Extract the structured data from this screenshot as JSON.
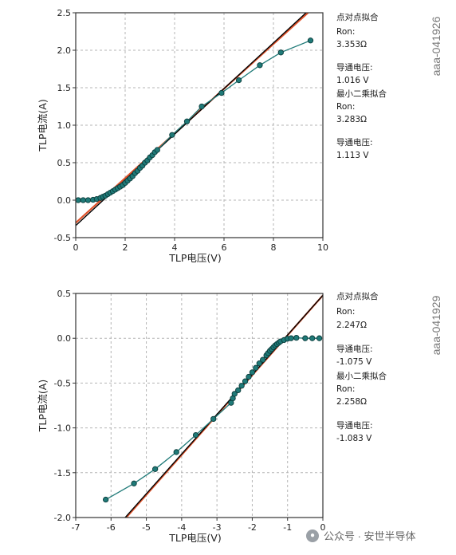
{
  "chart_data": [
    {
      "type": "scatter",
      "xlabel": "TLP电压(V)",
      "ylabel": "TLP电流(A)",
      "xlim": [
        0,
        10
      ],
      "ylim": [
        -0.5,
        2.5
      ],
      "xticks": [
        0,
        2,
        4,
        6,
        8,
        10
      ],
      "yticks": [
        -0.5,
        0.0,
        0.5,
        1.0,
        1.5,
        2.0,
        2.5
      ],
      "xtick_labels": [
        "0",
        "2",
        "4",
        "6",
        "8",
        "10"
      ],
      "ytick_labels": [
        "-0.5",
        "0.0",
        "0.5",
        "1.0",
        "1.5",
        "2.0",
        "2.5"
      ],
      "grid": true,
      "id_label": "aaa-041926",
      "series": [
        {
          "kind": "measured",
          "color": "#1f7a78",
          "x": [
            0.1,
            0.3,
            0.5,
            0.7,
            0.85,
            1.0,
            1.1,
            1.2,
            1.3,
            1.4,
            1.5,
            1.6,
            1.7,
            1.8,
            1.9,
            2.0,
            2.1,
            2.2,
            2.3,
            2.4,
            2.5,
            2.6,
            2.7,
            2.8,
            2.9,
            3.0,
            3.1,
            3.2,
            3.3,
            3.9,
            4.5,
            5.1,
            5.9,
            6.6,
            7.45,
            8.3,
            9.5
          ],
          "y": [
            0.0,
            0.0,
            0.0,
            0.005,
            0.015,
            0.03,
            0.045,
            0.06,
            0.08,
            0.1,
            0.12,
            0.14,
            0.16,
            0.18,
            0.2,
            0.23,
            0.26,
            0.29,
            0.32,
            0.36,
            0.39,
            0.43,
            0.46,
            0.5,
            0.53,
            0.57,
            0.6,
            0.64,
            0.67,
            0.87,
            1.05,
            1.25,
            1.43,
            1.6,
            1.8,
            1.97,
            2.13
          ]
        },
        {
          "kind": "fit-point-to-point",
          "color": "#e0522a",
          "slope_per_ohm": 3.353,
          "x_intercept": 1.016
        },
        {
          "kind": "fit-least-squares",
          "color": "#000000",
          "slope_per_ohm": 3.283,
          "x_intercept": 1.113
        }
      ],
      "annotations": [
        "点对点拟合",
        "Ron:",
        "3.353Ω",
        "导通电压:",
        "1.016 V",
        "最小二乘拟合",
        "Ron:",
        "3.283Ω",
        "导通电压:",
        "1.113 V"
      ]
    },
    {
      "type": "scatter",
      "xlabel": "TLP电压(V)",
      "ylabel": "TLP电流(A)",
      "xlim": [
        -7,
        0
      ],
      "ylim": [
        -2.0,
        0.5
      ],
      "xticks": [
        -7,
        -6,
        -5,
        -4,
        -3,
        -2,
        -1,
        0
      ],
      "yticks": [
        -2.0,
        -1.5,
        -1.0,
        -0.5,
        0.0,
        0.5
      ],
      "xtick_labels": [
        "-7",
        "-6",
        "-5",
        "-4",
        "-3",
        "-2",
        "-1",
        "0"
      ],
      "ytick_labels": [
        "-2.0",
        "-1.5",
        "-1.0",
        "-0.5",
        "0.0",
        "0.5"
      ],
      "grid": true,
      "id_label": "aaa-041929",
      "series": [
        {
          "kind": "measured",
          "color": "#1f7a78",
          "x": [
            -6.15,
            -5.35,
            -4.75,
            -4.15,
            -3.6,
            -3.1,
            -2.6,
            -2.55,
            -2.5,
            -2.4,
            -2.3,
            -2.2,
            -2.1,
            -2.0,
            -1.9,
            -1.8,
            -1.7,
            -1.6,
            -1.55,
            -1.5,
            -1.45,
            -1.4,
            -1.35,
            -1.3,
            -1.25,
            -1.2,
            -1.1,
            -1.0,
            -0.9,
            -0.75,
            -0.5,
            -0.3,
            -0.1
          ],
          "y": [
            -1.8,
            -1.62,
            -1.46,
            -1.27,
            -1.08,
            -0.9,
            -0.72,
            -0.67,
            -0.62,
            -0.58,
            -0.53,
            -0.48,
            -0.43,
            -0.38,
            -0.33,
            -0.28,
            -0.24,
            -0.19,
            -0.165,
            -0.14,
            -0.12,
            -0.1,
            -0.08,
            -0.065,
            -0.05,
            -0.035,
            -0.02,
            -0.005,
            0.0,
            0.005,
            0.0,
            0.0,
            0.0
          ]
        },
        {
          "kind": "fit-point-to-point",
          "color": "#e0522a",
          "slope_per_ohm": 2.247,
          "x_intercept": -1.075
        },
        {
          "kind": "fit-least-squares",
          "color": "#000000",
          "slope_per_ohm": 2.258,
          "x_intercept": -1.083
        }
      ],
      "annotations": [
        "点对点拟合",
        "Ron:",
        "2.247Ω",
        "导通电压:",
        "-1.075 V",
        "最小二乘拟合",
        "Ron:",
        "2.258Ω",
        "导通电压:",
        "-1.083 V"
      ]
    }
  ],
  "watermark": {
    "icon": "wechat-icon",
    "text": "公众号 · 安世半导体"
  }
}
